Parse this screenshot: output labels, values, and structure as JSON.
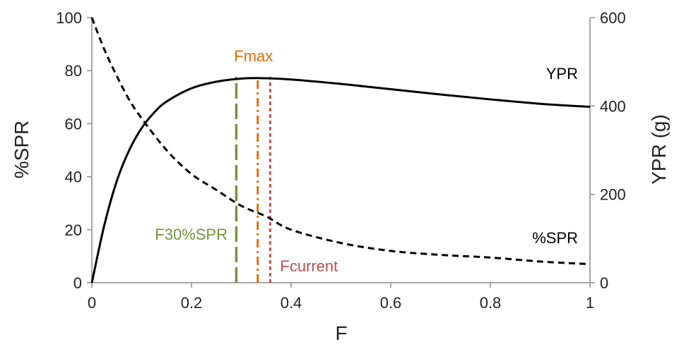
{
  "chart_data": {
    "type": "line",
    "xlabel": "F",
    "ylabel_left": "%SPR",
    "ylabel_right": "YPR (g)",
    "xlim": [
      0,
      1
    ],
    "ylim_left": [
      0,
      100
    ],
    "ylim_right": [
      0,
      600
    ],
    "x_ticks": [
      "0",
      "0.2",
      "0.4",
      "0.6",
      "0.8",
      "1"
    ],
    "y_ticks_left": [
      "0",
      "20",
      "40",
      "60",
      "80",
      "100"
    ],
    "y_ticks_right": [
      "0",
      "200",
      "400",
      "600"
    ],
    "series": [
      {
        "name": "YPR",
        "axis": "right",
        "style": "solid",
        "color": "#000000",
        "x": [
          0,
          0.025,
          0.05,
          0.075,
          0.1,
          0.125,
          0.15,
          0.2,
          0.25,
          0.3,
          0.34,
          0.4,
          0.5,
          0.6,
          0.7,
          0.8,
          0.9,
          1.0
        ],
        "y": [
          0,
          130,
          230,
          300,
          350,
          385,
          410,
          440,
          455,
          462,
          463,
          460,
          450,
          438,
          426,
          415,
          405,
          398
        ]
      },
      {
        "name": "%SPR",
        "axis": "left",
        "style": "dashed",
        "color": "#000000",
        "x": [
          0,
          0.025,
          0.05,
          0.075,
          0.1,
          0.15,
          0.2,
          0.25,
          0.3,
          0.35,
          0.4,
          0.5,
          0.6,
          0.7,
          0.8,
          0.9,
          1.0
        ],
        "y": [
          100,
          88,
          78,
          69,
          62,
          50,
          41,
          35,
          29,
          25,
          20,
          15,
          12,
          10.5,
          9.5,
          8,
          7
        ]
      }
    ],
    "reference_lines": [
      {
        "label": "F30%SPR",
        "x": 0.29,
        "color": "#77933C",
        "style": "long-dash"
      },
      {
        "label": "Fmax",
        "x": 0.333,
        "color": "#E46C0A",
        "style": "dash-dot"
      },
      {
        "label": "Fcurrent",
        "x": 0.358,
        "color": "#C0504D",
        "style": "dotted"
      }
    ],
    "grid": false
  }
}
